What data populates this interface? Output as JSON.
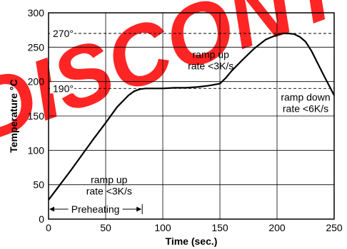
{
  "watermark": {
    "text": "DISCONTINUED",
    "color": "#ff0000"
  },
  "chart_data": {
    "type": "line",
    "xlabel": "Time (sec.)",
    "ylabel": "Temperature °C",
    "xlim": [
      0,
      250
    ],
    "ylim": [
      0,
      300
    ],
    "xticks": [
      0,
      50,
      100,
      150,
      200,
      250
    ],
    "yticks": [
      0,
      50,
      100,
      150,
      200,
      250,
      300
    ],
    "grid": true,
    "series": [
      {
        "color": "#000000",
        "x": [
          0,
          10,
          20,
          30,
          40,
          50,
          60,
          70,
          75,
          80,
          85,
          90,
          100,
          110,
          120,
          130,
          140,
          150,
          155,
          160,
          170,
          180,
          190,
          200,
          205,
          210,
          215,
          220,
          225,
          230,
          240,
          250
        ],
        "y": [
          28,
          50,
          72,
          95,
          118,
          140,
          163,
          180,
          186,
          189,
          190,
          190,
          190,
          191,
          191,
          192,
          194,
          197,
          205,
          215,
          232,
          248,
          261,
          268,
          270,
          270,
          269,
          265,
          258,
          245,
          212,
          180
        ]
      }
    ],
    "reference_lines": [
      {
        "y": 270,
        "label": "270°",
        "style": "dashed"
      },
      {
        "y": 190,
        "label": "190°",
        "style": "dashed"
      }
    ],
    "annotations": [
      {
        "line1": "ramp up",
        "line2": "rate <3K/s",
        "x": 53,
        "y": 50
      },
      {
        "line1": "ramp up",
        "line2": "rate <3K/s",
        "x": 142,
        "y": 232
      },
      {
        "line1": "ramp down",
        "line2": "rate <6K/s",
        "x": 225,
        "y": 170
      }
    ],
    "preheating": {
      "label": "Preheating",
      "x_start": 0,
      "x_end": 82
    }
  }
}
